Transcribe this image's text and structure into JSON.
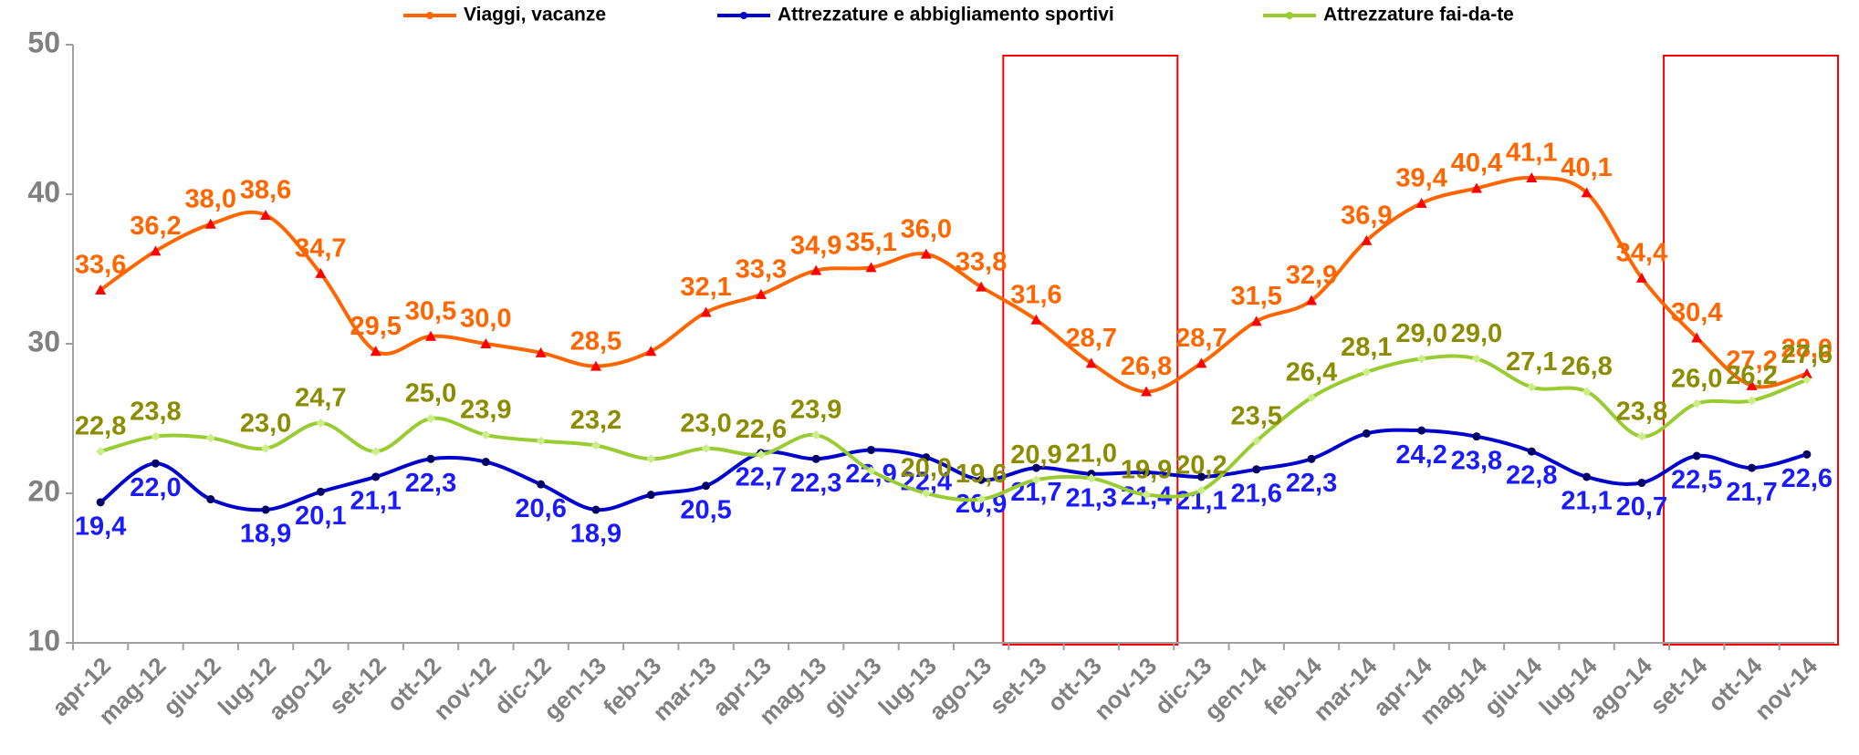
{
  "chart_data": {
    "type": "line",
    "categories": [
      "apr-12",
      "mag-12",
      "giu-12",
      "lug-12",
      "ago-12",
      "set-12",
      "ott-12",
      "nov-12",
      "dic-12",
      "gen-13",
      "feb-13",
      "mar-13",
      "apr-13",
      "mag-13",
      "giu-13",
      "lug-13",
      "ago-13",
      "set-13",
      "ott-13",
      "nov-13",
      "dic-13",
      "gen-14",
      "feb-14",
      "mar-14",
      "apr-14",
      "mag-14",
      "giu-14",
      "lug-14",
      "ago-14",
      "set-14",
      "ott-14",
      "nov-14"
    ],
    "series": [
      {
        "name": "Viaggi, vacanze",
        "color": "#ff6600",
        "label_color": "#ff6600",
        "values": [
          33.6,
          36.2,
          38.0,
          38.6,
          34.7,
          29.5,
          30.5,
          30.0,
          29.4,
          28.5,
          29.5,
          32.1,
          33.3,
          34.9,
          35.1,
          36.0,
          33.8,
          31.6,
          28.7,
          26.8,
          28.7,
          31.5,
          32.9,
          36.9,
          39.4,
          40.4,
          41.1,
          40.1,
          34.4,
          30.4,
          27.2,
          28.0
        ],
        "value_labels": [
          "33,6",
          "36,2",
          "38,0",
          "38,6",
          "34,7",
          "29,5",
          "30,5",
          "30,0",
          null,
          "28,5",
          null,
          "32,1",
          "33,3",
          "34,9",
          "35,1",
          "36,0",
          "33,8",
          "31,6",
          "28,7",
          "26,8",
          "28,7",
          "31,5",
          "32,9",
          "36,9",
          "39,4",
          "40,4",
          "41,1",
          "40,1",
          "34,4",
          "30,4",
          "27,2",
          "28,0"
        ]
      },
      {
        "name": "Attrezzature e abbigliamento sportivi",
        "color": "#0000cc",
        "label_color": "#1a1aff",
        "values": [
          19.4,
          22.0,
          19.6,
          18.9,
          20.1,
          21.1,
          22.3,
          22.1,
          20.6,
          18.9,
          19.9,
          20.5,
          22.7,
          22.3,
          22.9,
          22.4,
          20.9,
          21.7,
          21.3,
          21.4,
          21.1,
          21.6,
          22.3,
          24.0,
          24.2,
          23.8,
          22.8,
          21.1,
          20.7,
          22.5,
          21.7,
          22.6
        ],
        "value_labels": [
          "19,4",
          "22,0",
          null,
          "18,9",
          "20,1",
          "21,1",
          "22,3",
          null,
          "20,6",
          "18,9",
          null,
          "20,5",
          "22,7",
          "22,3",
          "22,9",
          "22,4",
          "20,9",
          "21,7",
          "21,3",
          "21,4",
          "21,1",
          "21,6",
          "22,3",
          null,
          "24,2",
          "23,8",
          "22,8",
          "21,1",
          "20,7",
          "22,5",
          "21,7",
          "22,6"
        ]
      },
      {
        "name": "Attrezzature fai-da-te",
        "color": "#99cc33",
        "label_color": "#8c8c00",
        "values": [
          22.8,
          23.8,
          23.7,
          23.0,
          24.7,
          22.8,
          25.0,
          23.9,
          23.5,
          23.2,
          22.3,
          23.0,
          22.6,
          23.9,
          21.5,
          20.0,
          19.6,
          20.9,
          21.0,
          19.9,
          20.2,
          23.5,
          26.4,
          28.1,
          29.0,
          29.0,
          27.1,
          26.8,
          23.8,
          26.0,
          26.2,
          27.6
        ],
        "value_labels": [
          "22,8",
          "23,8",
          null,
          "23,0",
          "24,7",
          null,
          "25,0",
          "23,9",
          null,
          "23,2",
          null,
          "23,0",
          "22,6",
          "23,9",
          null,
          "20,0",
          "19,6",
          "20,9",
          "21,0",
          "19,9",
          "20,2",
          "23,5",
          "26,4",
          "28,1",
          "29,0",
          "29,0",
          "27,1",
          "26,8",
          "23,8",
          "26,0",
          "26,2",
          "27,6"
        ]
      }
    ],
    "ylim": [
      10,
      50
    ],
    "yticks": [
      10,
      20,
      30,
      40,
      50
    ],
    "grid": false,
    "legend": "top"
  }
}
